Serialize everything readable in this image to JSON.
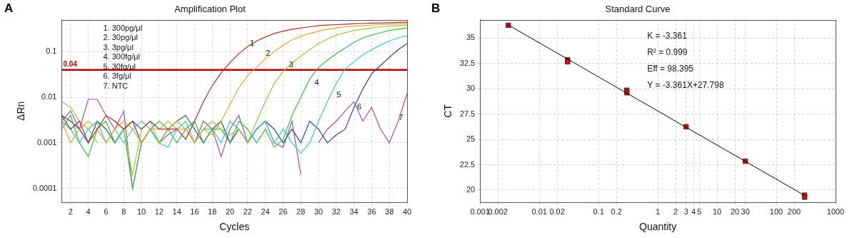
{
  "chart_data": [
    {
      "panel_label": "A",
      "type": "line",
      "title": "Amplification Plot",
      "x_label": "Cycles",
      "y_label": "ΔRn",
      "log": "y",
      "grid": true,
      "legend": "upper left",
      "x": [
        1,
        2,
        3,
        4,
        5,
        6,
        7,
        8,
        9,
        10,
        11,
        12,
        13,
        14,
        15,
        16,
        17,
        18,
        19,
        20,
        21,
        22,
        23,
        24,
        25,
        26,
        27,
        28,
        29,
        30,
        31,
        32,
        33,
        34,
        35,
        36,
        37,
        38,
        39,
        40
      ],
      "xlim": [
        1,
        40
      ],
      "xticks": [
        2,
        4,
        6,
        8,
        10,
        12,
        14,
        16,
        18,
        20,
        22,
        24,
        26,
        28,
        30,
        32,
        34,
        36,
        38,
        40
      ],
      "ylim": [
        5e-05,
        0.5
      ],
      "yticks": [
        0.0001,
        0.001,
        0.01,
        0.1
      ],
      "series": [
        {
          "name": "1. 300pg/μl",
          "color": "#a8322a",
          "values": [
            0.004,
            0.002,
            0.003,
            0.001,
            0.002,
            0.004,
            0.003,
            0.002,
            0.003,
            0.002,
            0.003,
            0.002,
            0.002,
            0.002,
            0.0012,
            0.003,
            0.008,
            0.018,
            0.034,
            0.058,
            0.09,
            0.13,
            0.17,
            0.21,
            0.25,
            0.28,
            0.31,
            0.33,
            0.35,
            0.37,
            0.38,
            0.39,
            0.4,
            0.41,
            0.415,
            0.42,
            0.425,
            0.43,
            0.435,
            0.44
          ]
        },
        {
          "name": "2. 30pg/μl",
          "color": "#e3a530",
          "values": [
            0.003,
            0.001,
            0.002,
            0.003,
            0.002,
            0.001,
            0.002,
            0.003,
            0.002,
            0.001,
            0.002,
            0.002,
            0.003,
            0.002,
            0.002,
            0.001,
            0.002,
            0.0015,
            0.003,
            0.007,
            0.016,
            0.03,
            0.045,
            0.07,
            0.1,
            0.14,
            0.18,
            0.22,
            0.25,
            0.28,
            0.31,
            0.33,
            0.35,
            0.36,
            0.37,
            0.38,
            0.39,
            0.4,
            0.405,
            0.41
          ]
        },
        {
          "name": "3. 3pg/μl",
          "color": "#8fcc3c",
          "values": [
            0.008,
            0.006,
            0.003,
            0.002,
            0.001,
            null,
            0.003,
            0.002,
            0.0002,
            0.002,
            0.003,
            0.001,
            0.002,
            0.003,
            0.002,
            0.001,
            0.002,
            0.003,
            0.002,
            0.0015,
            0.002,
            0.001,
            0.003,
            0.008,
            0.02,
            0.037,
            0.055,
            0.08,
            0.11,
            0.15,
            0.19,
            0.23,
            0.26,
            0.29,
            0.31,
            0.33,
            0.35,
            0.36,
            0.37,
            0.38
          ]
        },
        {
          "name": "4. 300fg/μl",
          "color": "#3cb84c",
          "values": [
            0.002,
            0.004,
            0.001,
            0.0005,
            0.002,
            0.003,
            0.001,
            0.002,
            0.0001,
            0.001,
            0.002,
            0.003,
            0.002,
            0.001,
            0.002,
            0.003,
            0.001,
            0.002,
            0.002,
            0.001,
            0.003,
            0.002,
            0.001,
            0.002,
            0.0008,
            0.0012,
            0.004,
            0.01,
            0.025,
            0.045,
            0.065,
            0.09,
            0.12,
            0.16,
            0.2,
            0.23,
            0.26,
            0.29,
            0.31,
            0.33
          ]
        },
        {
          "name": "5. 30fg/μl",
          "color": "#3ec6c8",
          "values": [
            0.003,
            0.002,
            0.001,
            0.002,
            0.003,
            0.001,
            0.002,
            0.001,
            0.002,
            0.003,
            0.002,
            0.001,
            0.0008,
            0.002,
            0.003,
            0.001,
            0.002,
            0.002,
            0.001,
            0.003,
            0.002,
            0.001,
            0.002,
            0.003,
            0.001,
            0.002,
            0.001,
            0.0006,
            0.001,
            0.003,
            0.008,
            0.02,
            0.042,
            0.06,
            0.085,
            0.11,
            0.14,
            0.17,
            0.2,
            0.22
          ]
        },
        {
          "name": "6. 3fg/μl",
          "color": "#2c4a7c",
          "values": [
            0.004,
            0.003,
            0.002,
            0.001,
            0.003,
            0.002,
            0.001,
            0.002,
            0.003,
            0.001,
            0.002,
            0.001,
            0.002,
            0.003,
            0.004,
            0.002,
            0.001,
            0.002,
            0.003,
            0.001,
            0.002,
            0.001,
            0.002,
            0.003,
            0.002,
            0.001,
            0.002,
            0.001,
            0.003,
            0.002,
            0.001,
            0.0015,
            0.002,
            0.006,
            0.015,
            0.033,
            0.05,
            0.075,
            0.11,
            0.15
          ]
        },
        {
          "name": "7. NTC",
          "color": "#b04a9e",
          "values": [
            0.003,
            0.005,
            0.002,
            0.009,
            0.009,
            0.004,
            0.002,
            0.005,
            0.0001,
            0.001,
            0.002,
            0.001,
            0.0015,
            0.002,
            null,
            0.001,
            0.003,
            0.002,
            0.0005,
            0.002,
            0.004,
            0.001,
            0.002,
            0.003,
            0.001,
            0.0008,
            0.003,
            0.0002,
            null,
            0.001,
            0.002,
            0.003,
            0.005,
            0.008,
            0.003,
            0.006,
            0.002,
            0.001,
            0.003,
            0.012
          ]
        }
      ],
      "threshold": {
        "value": 0.04,
        "label": "0.04",
        "color": "#b00000"
      },
      "annotations": [
        {
          "text": "1",
          "x": 22.5,
          "y": 0.15
        },
        {
          "text": "2",
          "x": 24.3,
          "y": 0.09
        },
        {
          "text": "3",
          "x": 26.9,
          "y": 0.05
        },
        {
          "text": "4",
          "x": 29.8,
          "y": 0.021
        },
        {
          "text": "5",
          "x": 32.3,
          "y": 0.011
        },
        {
          "text": "6",
          "x": 34.6,
          "y": 0.006
        },
        {
          "text": "7",
          "x": 39.3,
          "y": 0.0035
        }
      ]
    },
    {
      "panel_label": "B",
      "type": "scatter",
      "title": "Standard Curve",
      "x_label": "Quantity",
      "y_label": "CT",
      "log": "x",
      "grid": true,
      "marker": "square",
      "color": "#b01c1c",
      "x": [
        0.003,
        0.03,
        0.03,
        0.3,
        0.3,
        3,
        30,
        300,
        300
      ],
      "values": [
        36.25,
        32.85,
        32.65,
        29.85,
        29.6,
        26.25,
        22.85,
        19.5,
        19.3
      ],
      "fit_line": {
        "x": [
          0.003,
          300
        ],
        "values": [
          36.28,
          19.47
        ],
        "color": "#000000",
        "line_style": "solid"
      },
      "xlim": [
        0.001,
        1000
      ],
      "xticks": [
        0.001,
        0.002,
        0.01,
        0.02,
        0.1,
        0.2,
        1,
        2,
        3,
        4,
        5,
        10,
        20,
        30,
        100,
        200,
        1000
      ],
      "ylim": [
        18.8,
        36.8
      ],
      "yticks": [
        20,
        22.5,
        25,
        27.5,
        30,
        32.5,
        35
      ],
      "annotations": [
        "K = -3.361",
        "R² = 0.999",
        "Eff = 98.395",
        "Y = -3.361X+27.798"
      ]
    }
  ]
}
